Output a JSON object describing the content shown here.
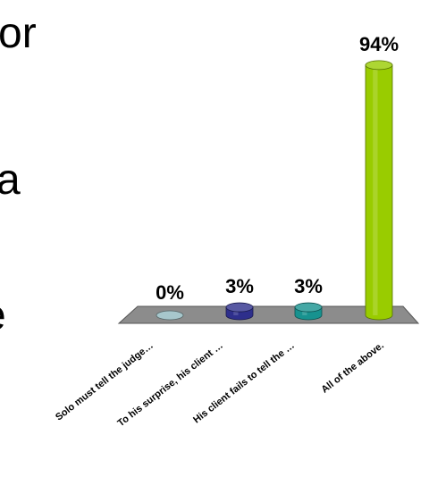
{
  "slide_text_fragments": [
    "or",
    "a",
    "e"
  ],
  "chart_data": {
    "type": "bar",
    "categories": [
      "Solo must tell the judge…",
      "To his surprise, his client …",
      "His client fails to tell the …",
      "All of the above."
    ],
    "values": [
      0,
      3,
      3,
      94
    ],
    "value_labels": [
      "0%",
      "3%",
      "3%",
      "94%"
    ],
    "ylim": [
      0,
      100
    ],
    "grid": false,
    "style": "3d-cylinder",
    "colors": [
      "#a7c7cc",
      "#2e2f8c",
      "#17928f",
      "#99cc00"
    ],
    "floor_color": "#8c8c8c",
    "title": "",
    "xlabel": "",
    "ylabel": ""
  }
}
